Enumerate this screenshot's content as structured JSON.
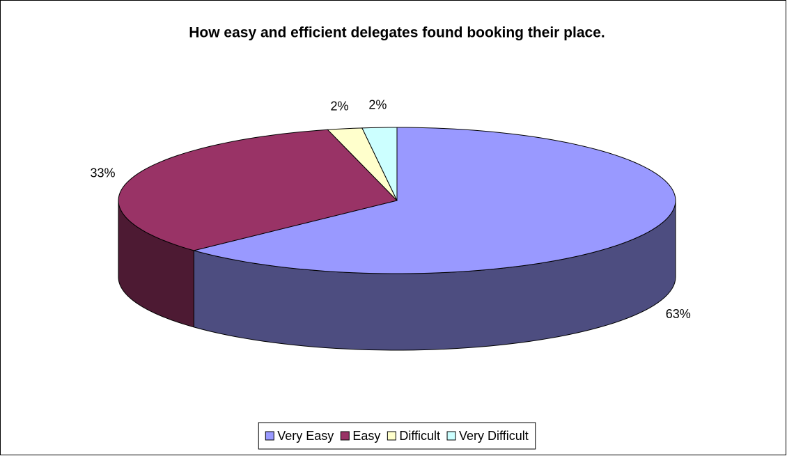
{
  "chart_data": {
    "type": "pie",
    "title": "How easy and efficient delegates found booking their place.",
    "categories": [
      "Very Easy",
      "Easy",
      "Difficult",
      "Very Difficult"
    ],
    "values": [
      63,
      33,
      2,
      2
    ],
    "value_labels": [
      "63%",
      "33%",
      "2%",
      "2%"
    ],
    "colors": [
      "#9999ff",
      "#993366",
      "#ffffcc",
      "#ccffff"
    ],
    "legend": "bottom"
  }
}
